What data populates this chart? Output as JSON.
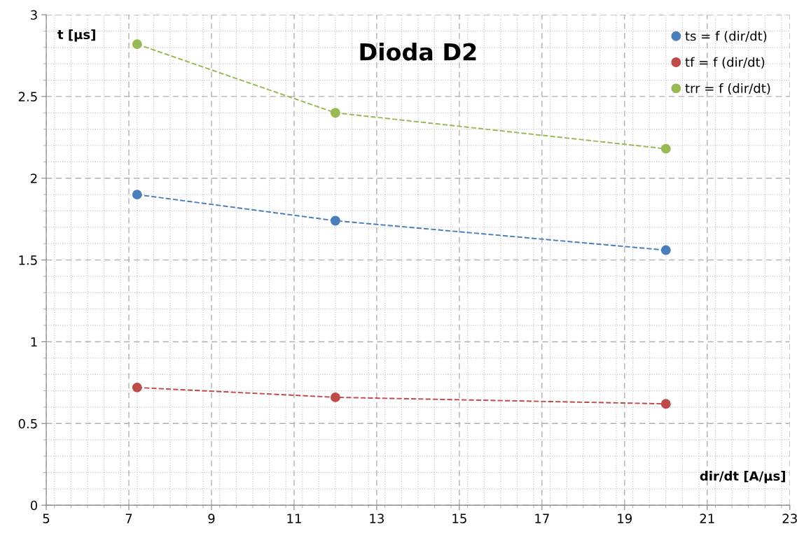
{
  "chart_data": {
    "type": "line",
    "title": "Dioda D2",
    "xlabel": "dir/dt [A/µs]",
    "ylabel": "t [µs]",
    "series": [
      {
        "name": "ts = f (dir/dt)",
        "color": "#4a7ebb",
        "x": [
          7.2,
          12,
          20
        ],
        "values": [
          1.9,
          1.74,
          1.56
        ]
      },
      {
        "name": "tf = f (dir/dt)",
        "color": "#be4b48",
        "x": [
          7.2,
          12,
          20
        ],
        "values": [
          0.72,
          0.66,
          0.62
        ]
      },
      {
        "name": "trr = f (dir/dt)",
        "color": "#98b954",
        "x": [
          7.2,
          12,
          20
        ],
        "values": [
          2.82,
          2.4,
          2.18
        ]
      }
    ],
    "xlim": [
      5,
      23
    ],
    "xticks": [
      5,
      7,
      9,
      11,
      13,
      15,
      17,
      19,
      21,
      23
    ],
    "ylim": [
      0,
      3
    ],
    "yticks": [
      0,
      0.5,
      1,
      1.5,
      2,
      2.5,
      3
    ],
    "grid": true,
    "legend": "top right",
    "marker": "circle",
    "line_style": "dashed"
  }
}
